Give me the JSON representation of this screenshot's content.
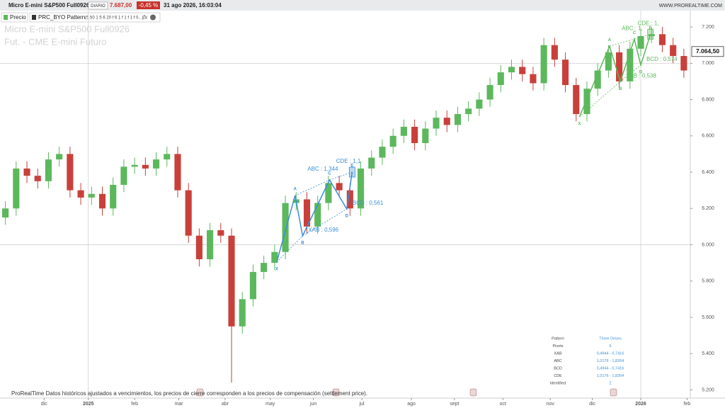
{
  "header": {
    "instrument": "Micro E-mini S&P500 Full0926",
    "period": "DIARIO",
    "price": "7.687,00",
    "change": "-0,45 %",
    "datetime": "31 ago 2026, 16:03:04",
    "site": "WWW.PROREALTIME.COM"
  },
  "legend": {
    "price": "Precio",
    "indicator": "PRC_BYO Pattern",
    "indicator_params": "(5.50 1 5 6 20 f 6 1 f 1 f 1 f 0...)"
  },
  "chart_data": {
    "type": "candlestick",
    "watermark": [
      "Micro E-mini S&P500 Full0926",
      "Fut. - CME E-mini  Futuro"
    ],
    "up_color": "#5cb85c",
    "down_color": "#c9403a",
    "x": [
      0.5,
      1.5,
      2.5,
      3.5,
      4.5,
      5.5,
      6.5,
      7.5,
      8.5,
      9.5,
      10.5,
      11.5,
      12.5,
      13.5,
      14.5,
      15.5,
      16.5,
      17.5,
      18.5,
      19.5,
      20.5,
      21.5,
      22.5,
      23.5,
      24.5,
      25.5,
      26.5,
      27.5,
      28.5,
      29.5,
      30.5,
      31.5,
      32.5,
      33.5,
      34.5,
      35.5,
      36.5,
      37.5,
      38.5,
      39.5,
      40.5,
      41.5,
      42.5,
      43.5,
      44.5,
      45.5,
      46.5,
      47.5,
      48.5,
      49.5,
      50.5,
      51.5,
      52.5,
      53.5,
      54.5,
      55.5,
      56.5,
      57.5,
      58.5,
      59.5,
      60.5,
      61.5,
      62.5,
      63.5
    ],
    "open": [
      6150,
      6200,
      6420,
      6380,
      6350,
      6470,
      6500,
      6300,
      6260,
      6280,
      6200,
      6330,
      6430,
      6440,
      6420,
      6470,
      6500,
      6300,
      6050,
      5920,
      6080,
      6050,
      5550,
      5700,
      5850,
      5900,
      5960,
      6230,
      6250,
      6100,
      6230,
      6340,
      6300,
      6200,
      6420,
      6480,
      6540,
      6600,
      6650,
      6560,
      6640,
      6700,
      6660,
      6720,
      6750,
      6800,
      6880,
      6950,
      6980,
      6940,
      6890,
      7100,
      7020,
      6880,
      6720,
      6860,
      6960,
      7060,
      6900,
      7080,
      7150,
      7160,
      7100,
      7040
    ],
    "high": [
      6240,
      6460,
      6460,
      6420,
      6510,
      6540,
      6540,
      6340,
      6320,
      6320,
      6370,
      6470,
      6480,
      6480,
      6510,
      6540,
      6540,
      6340,
      6090,
      6120,
      6120,
      6090,
      5740,
      5890,
      5940,
      6000,
      6270,
      6290,
      6290,
      6270,
      6380,
      6380,
      6340,
      6460,
      6520,
      6580,
      6640,
      6690,
      6690,
      6680,
      6740,
      6740,
      6760,
      6790,
      6840,
      6920,
      6990,
      7020,
      7020,
      6980,
      7140,
      7140,
      7060,
      6920,
      6900,
      7000,
      7100,
      7100,
      7120,
      7190,
      7200,
      7200,
      7140,
      7080
    ],
    "low": [
      6110,
      6160,
      6340,
      6310,
      6310,
      6430,
      6260,
      6220,
      6220,
      6160,
      6160,
      6290,
      6390,
      6380,
      6380,
      6430,
      6260,
      6010,
      5880,
      5880,
      6010,
      5240,
      5510,
      5660,
      5810,
      5860,
      5920,
      6190,
      6060,
      6060,
      6190,
      6260,
      6160,
      6160,
      6380,
      6440,
      6500,
      6560,
      6520,
      6520,
      6600,
      6620,
      6620,
      6680,
      6710,
      6760,
      6840,
      6910,
      6900,
      6850,
      6850,
      6980,
      6840,
      6680,
      6680,
      6820,
      6920,
      6860,
      6860,
      7040,
      7110,
      7060,
      7000,
      6920
    ],
    "close": [
      6200,
      6420,
      6380,
      6350,
      6470,
      6500,
      6300,
      6260,
      6280,
      6200,
      6330,
      6430,
      6440,
      6420,
      6470,
      6500,
      6300,
      6050,
      5920,
      6080,
      6050,
      5550,
      5700,
      5850,
      5900,
      5960,
      6230,
      6250,
      6100,
      6230,
      6340,
      6300,
      6200,
      6420,
      6480,
      6540,
      6600,
      6650,
      6560,
      6640,
      6700,
      6660,
      6720,
      6750,
      6800,
      6880,
      6950,
      6980,
      6940,
      6890,
      7100,
      7020,
      6880,
      6720,
      6860,
      6960,
      7060,
      6900,
      7080,
      7150,
      7160,
      7100,
      7040,
      6960
    ],
    "xlim": [
      0,
      64.1
    ],
    "xticks": [
      {
        "value": 4.1,
        "label": "dic"
      },
      {
        "value": 8.2,
        "label": "2025"
      },
      {
        "value": 12.5,
        "label": "feb"
      },
      {
        "value": 16.6,
        "label": "mar"
      },
      {
        "value": 20.9,
        "label": "abr"
      },
      {
        "value": 25.1,
        "label": "may"
      },
      {
        "value": 29.1,
        "label": "jun"
      },
      {
        "value": 33.6,
        "label": "jul"
      },
      {
        "value": 38.2,
        "label": "ago"
      },
      {
        "value": 42.2,
        "label": "sept"
      },
      {
        "value": 46.7,
        "label": "oct"
      },
      {
        "value": 51.1,
        "label": "nov"
      },
      {
        "value": 55,
        "label": "dic"
      },
      {
        "value": 59.5,
        "label": "2026"
      },
      {
        "value": 63.8,
        "label": "feb"
      }
    ],
    "ylim": [
      5155,
      7290
    ],
    "yticks": [
      {
        "value": 7200,
        "label": "7.200"
      },
      {
        "value": 7000,
        "label": "7.000"
      },
      {
        "value": 6800,
        "label": "6.800"
      },
      {
        "value": 6600,
        "label": "6.600"
      },
      {
        "value": 6400,
        "label": "6.400"
      },
      {
        "value": 6200,
        "label": "6.200"
      },
      {
        "value": 6000,
        "label": "6.000"
      },
      {
        "value": 5800,
        "label": "5.800"
      },
      {
        "value": 5600,
        "label": "5.600"
      },
      {
        "value": 5400,
        "label": "5.400"
      },
      {
        "value": 5200,
        "label": "5.200"
      }
    ],
    "last_price": {
      "value": 7064.5,
      "label": "7.064,50"
    },
    "patterns": [
      {
        "color": "#3a8fd6",
        "points": [
          {
            "label": "X",
            "x": 25.7,
            "y": 5905
          },
          {
            "label": "A",
            "x": 27.4,
            "y": 6271
          },
          {
            "label": "B",
            "x": 28.1,
            "y": 6049
          },
          {
            "label": "C",
            "x": 30.6,
            "y": 6357
          },
          {
            "label": "D",
            "x": 32.2,
            "y": 6197
          },
          {
            "label": "E",
            "x": 32.7,
            "y": 6400
          }
        ],
        "ratios": [
          "XAB : 0,596",
          "ABC : 1,344",
          "BCD : 0,561",
          "CDE : 1,1"
        ]
      },
      {
        "color": "#5cb85c",
        "points": [
          {
            "label": "X",
            "x": 53.8,
            "y": 6704
          },
          {
            "label": "A",
            "x": 56.6,
            "y": 7094
          },
          {
            "label": "B",
            "x": 57.6,
            "y": 6899
          },
          {
            "label": "C",
            "x": 58.9,
            "y": 7133
          },
          {
            "label": "D",
            "x": 59.5,
            "y": 6990
          },
          {
            "label": "E",
            "x": 60.4,
            "y": 7160
          }
        ],
        "ratios": [
          "XAB : 0,538",
          "ABC : 1,",
          "BCD : 0,574",
          "CDE : 1,"
        ]
      }
    ],
    "stats_table": [
      [
        "Pattern",
        "Three Drives"
      ],
      [
        "Pivots",
        "6"
      ],
      [
        "XAB",
        "0,4944 - 0,7416"
      ],
      [
        "ABC",
        "1,0176 - 1,8264"
      ],
      [
        "BCD",
        "0,4944 - 0,7416"
      ],
      [
        "CDE",
        "1,0176 - 1,8264"
      ],
      [
        "Identified",
        "2"
      ]
    ],
    "footnote": "ProRealTime Datos históricos ajustados a vencimientos, los precios de cierre corresponden a los precios de compensación (settlement price)."
  }
}
